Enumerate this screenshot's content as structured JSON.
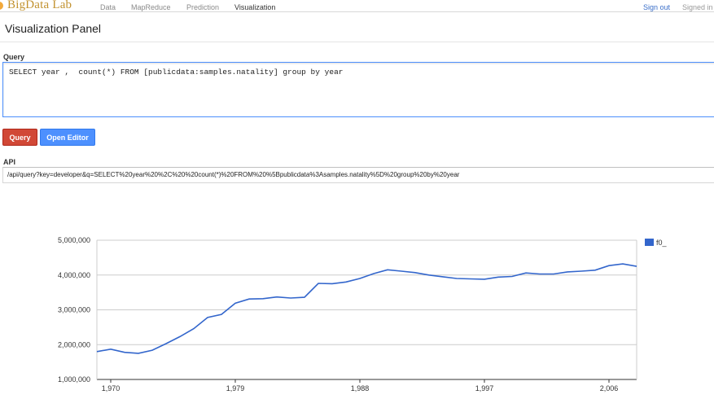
{
  "app": {
    "brand": "BigData Lab",
    "nav": [
      "Data",
      "MapReduce",
      "Prediction",
      "Visualization"
    ],
    "active_nav": "Visualization",
    "sign_out": "Sign out",
    "signed_in": "Signed in"
  },
  "page": {
    "title": "Visualization Panel"
  },
  "query": {
    "label": "Query",
    "value": "SELECT year ,  count(*) FROM [publicdata:samples.natality] group by year",
    "run_button": "Query",
    "editor_button": "Open Editor"
  },
  "api": {
    "label": "API",
    "value": "/api/query?key=developer&q=SELECT%20year%20%2C%20%20count(*)%20FROM%20%5Bpublicdata%3Asamples.natality%5D%20group%20by%20year"
  },
  "colors": {
    "series": "#3366cc",
    "query_button": "#d14836",
    "editor_button": "#4d90fe",
    "link": "#3b6fc9"
  },
  "chart_data": {
    "type": "line",
    "title": "",
    "xlabel": "",
    "ylabel": "",
    "ylim": [
      1000000,
      5000000
    ],
    "yticks": [
      "1,000,000",
      "2,000,000",
      "3,000,000",
      "4,000,000",
      "5,000,000"
    ],
    "yticks_values": [
      1000000,
      2000000,
      3000000,
      4000000,
      5000000
    ],
    "xticks": [
      "1,970",
      "1,979",
      "1,988",
      "1,997",
      "2,006"
    ],
    "xticks_values": [
      1970,
      1979,
      1988,
      1997,
      2006
    ],
    "xlim": [
      1969,
      2008
    ],
    "grid": true,
    "legend_position": "right",
    "series": [
      {
        "name": "f0_",
        "x": [
          1969,
          1970,
          1971,
          1972,
          1973,
          1974,
          1975,
          1976,
          1977,
          1978,
          1979,
          1980,
          1981,
          1982,
          1983,
          1984,
          1985,
          1986,
          1987,
          1988,
          1989,
          1990,
          1991,
          1992,
          1993,
          1994,
          1995,
          1996,
          1997,
          1998,
          1999,
          2000,
          2001,
          2002,
          2003,
          2004,
          2005,
          2006,
          2007,
          2008
        ],
        "values": [
          1800000,
          1870000,
          1780000,
          1750000,
          1840000,
          2030000,
          2230000,
          2460000,
          2780000,
          2870000,
          3190000,
          3310000,
          3320000,
          3370000,
          3340000,
          3360000,
          3760000,
          3750000,
          3800000,
          3900000,
          4040000,
          4150000,
          4110000,
          4070000,
          4000000,
          3950000,
          3900000,
          3890000,
          3880000,
          3940000,
          3960000,
          4060000,
          4030000,
          4030000,
          4090000,
          4110000,
          4140000,
          4270000,
          4320000,
          4250000
        ]
      }
    ]
  }
}
